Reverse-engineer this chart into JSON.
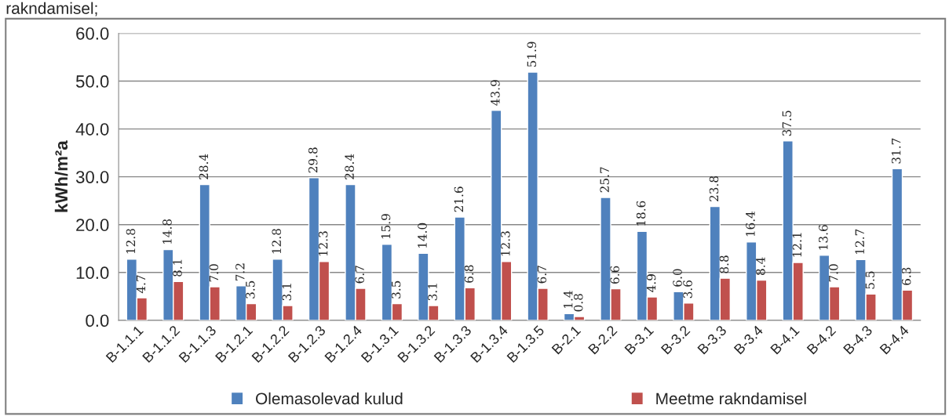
{
  "chart_data": {
    "type": "bar",
    "annotations": [
      "rakndamisel;"
    ],
    "ylabel": "kWh/m²a",
    "categories": [
      "B-1.1.1",
      "B-1.1.2",
      "B-1.1.3",
      "B-1.2.1",
      "B-1.2.2",
      "B-1.2.3",
      "B-1.2.4",
      "B-1.3.1",
      "B-1.3.2",
      "B-1.3.3",
      "B-1.3.4",
      "B-1.3.5",
      "B-2.1",
      "B-2.2",
      "B-3.1",
      "B-3.2",
      "B-3.3",
      "B-3.4",
      "B-4.1",
      "B-4.2",
      "B-4.3",
      "B-4.4"
    ],
    "series": [
      {
        "name": "Olemasolevad kulud",
        "color": "#4f81bd",
        "values": [
          12.8,
          14.8,
          28.4,
          7.2,
          12.8,
          29.8,
          28.4,
          15.9,
          14.0,
          21.6,
          43.9,
          51.9,
          1.4,
          25.7,
          18.6,
          6.0,
          23.8,
          16.4,
          37.5,
          13.6,
          12.7,
          31.7
        ],
        "value_labels": [
          "12.8",
          "14.8",
          "28.4",
          "7.2",
          "12.8",
          "29.8",
          "28.4",
          "15.9",
          "14.0",
          "21.6",
          "43.9",
          "51.9",
          "1.4",
          "25.7",
          "18.6",
          "6.0",
          "23.8",
          "16.4",
          "37.5",
          "13.6",
          "12.7",
          "31.7"
        ]
      },
      {
        "name": "Meetme rakndamisel",
        "color": "#c0504d",
        "values": [
          4.7,
          8.1,
          7.0,
          3.5,
          3.1,
          12.3,
          6.7,
          3.5,
          3.1,
          6.8,
          12.3,
          6.7,
          0.8,
          6.6,
          4.9,
          3.6,
          8.8,
          8.4,
          12.1,
          7.0,
          5.5,
          6.3
        ],
        "value_labels": [
          "4.7",
          "8.1",
          "7.0",
          "3.5",
          "3.1",
          "12.3",
          "6.7",
          "3.5",
          "3.1",
          "6.8",
          "12.3",
          "6.7",
          "0.8",
          "6.6",
          "4.9",
          "3.6",
          "8.8",
          "8.4",
          "12.1",
          "7.0",
          "5.5",
          "6.3"
        ]
      }
    ],
    "ylim": [
      0,
      60
    ],
    "yticks": [
      {
        "value": 0,
        "label": "0.0"
      },
      {
        "value": 10,
        "label": "10.0"
      },
      {
        "value": 20,
        "label": "20.0"
      },
      {
        "value": 30,
        "label": "30.0"
      },
      {
        "value": 40,
        "label": "40.0"
      },
      {
        "value": 50,
        "label": "50.0"
      },
      {
        "value": 60,
        "label": "60.0"
      }
    ],
    "grid": "y",
    "legend": "bottom"
  }
}
